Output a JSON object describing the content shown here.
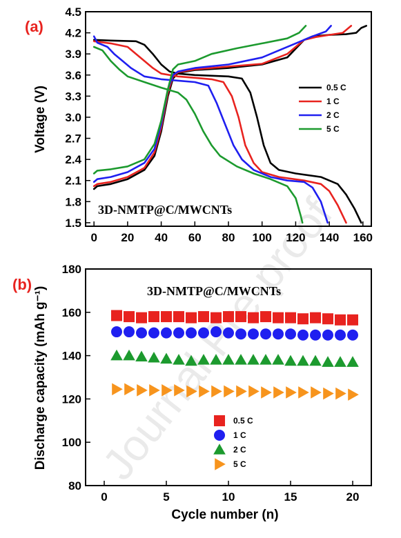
{
  "watermark": "Journal Pre-proof",
  "chart_data": [
    {
      "type": "line",
      "panel_label": "(a)",
      "inset_label": "3D-NMTP@C/MWCNTs",
      "ylabel": "Voltage (V)",
      "xlabel": "",
      "xlim": [
        -5,
        165
      ],
      "ylim": [
        1.45,
        4.5
      ],
      "x_ticks": [
        "0",
        "20",
        "40",
        "60",
        "80",
        "100",
        "120",
        "140",
        "160"
      ],
      "y_ticks": [
        "1.5",
        "1.8",
        "2.1",
        "2.4",
        "2.7",
        "3.0",
        "3.3",
        "3.6",
        "3.9",
        "4.2",
        "4.5"
      ],
      "legend_position": "right",
      "series": [
        {
          "name": "0.5 C",
          "color": "#000000",
          "charge": [
            [
              0,
              1.98
            ],
            [
              2,
              2.02
            ],
            [
              10,
              2.05
            ],
            [
              20,
              2.12
            ],
            [
              30,
              2.25
            ],
            [
              36,
              2.45
            ],
            [
              40,
              2.8
            ],
            [
              44,
              3.3
            ],
            [
              47,
              3.55
            ],
            [
              50,
              3.63
            ],
            [
              60,
              3.67
            ],
            [
              80,
              3.7
            ],
            [
              100,
              3.75
            ],
            [
              115,
              3.85
            ],
            [
              125,
              4.1
            ],
            [
              130,
              4.15
            ],
            [
              140,
              4.17
            ],
            [
              150,
              4.18
            ],
            [
              156,
              4.2
            ],
            [
              159,
              4.27
            ],
            [
              162,
              4.3
            ]
          ],
          "discharge": [
            [
              0,
              4.1
            ],
            [
              10,
              4.09
            ],
            [
              25,
              4.08
            ],
            [
              30,
              4.03
            ],
            [
              35,
              3.9
            ],
            [
              40,
              3.75
            ],
            [
              45,
              3.65
            ],
            [
              50,
              3.62
            ],
            [
              60,
              3.6
            ],
            [
              80,
              3.58
            ],
            [
              88,
              3.55
            ],
            [
              93,
              3.35
            ],
            [
              97,
              3.0
            ],
            [
              101,
              2.6
            ],
            [
              105,
              2.35
            ],
            [
              110,
              2.25
            ],
            [
              120,
              2.2
            ],
            [
              135,
              2.15
            ],
            [
              145,
              2.05
            ],
            [
              150,
              1.9
            ],
            [
              155,
              1.7
            ],
            [
              159,
              1.5
            ]
          ]
        },
        {
          "name": "1 C",
          "color": "#e8231f",
          "charge": [
            [
              0,
              2.02
            ],
            [
              2,
              2.05
            ],
            [
              10,
              2.08
            ],
            [
              20,
              2.15
            ],
            [
              30,
              2.28
            ],
            [
              36,
              2.5
            ],
            [
              40,
              2.85
            ],
            [
              44,
              3.35
            ],
            [
              47,
              3.58
            ],
            [
              50,
              3.64
            ],
            [
              60,
              3.68
            ],
            [
              80,
              3.72
            ],
            [
              100,
              3.76
            ],
            [
              115,
              3.9
            ],
            [
              125,
              4.1
            ],
            [
              132,
              4.14
            ],
            [
              140,
              4.17
            ],
            [
              148,
              4.2
            ],
            [
              153,
              4.3
            ]
          ],
          "discharge": [
            [
              0,
              4.08
            ],
            [
              10,
              4.05
            ],
            [
              20,
              4.0
            ],
            [
              25,
              3.9
            ],
            [
              30,
              3.8
            ],
            [
              35,
              3.7
            ],
            [
              40,
              3.62
            ],
            [
              50,
              3.58
            ],
            [
              60,
              3.56
            ],
            [
              70,
              3.54
            ],
            [
              77,
              3.5
            ],
            [
              82,
              3.3
            ],
            [
              86,
              3.0
            ],
            [
              90,
              2.6
            ],
            [
              95,
              2.35
            ],
            [
              100,
              2.22
            ],
            [
              110,
              2.15
            ],
            [
              125,
              2.1
            ],
            [
              135,
              2.05
            ],
            [
              140,
              1.95
            ],
            [
              145,
              1.75
            ],
            [
              150,
              1.5
            ]
          ]
        },
        {
          "name": "2 C",
          "color": "#1f1ff0",
          "charge": [
            [
              0,
              2.08
            ],
            [
              2,
              2.12
            ],
            [
              10,
              2.15
            ],
            [
              20,
              2.22
            ],
            [
              30,
              2.35
            ],
            [
              36,
              2.55
            ],
            [
              40,
              2.9
            ],
            [
              44,
              3.4
            ],
            [
              47,
              3.6
            ],
            [
              50,
              3.65
            ],
            [
              60,
              3.7
            ],
            [
              80,
              3.75
            ],
            [
              100,
              3.85
            ],
            [
              110,
              3.95
            ],
            [
              120,
              4.05
            ],
            [
              130,
              4.15
            ],
            [
              138,
              4.22
            ],
            [
              141,
              4.3
            ]
          ],
          "discharge": [
            [
              0,
              4.15
            ],
            [
              2,
              4.06
            ],
            [
              8,
              4.0
            ],
            [
              12,
              3.9
            ],
            [
              17,
              3.8
            ],
            [
              22,
              3.7
            ],
            [
              30,
              3.58
            ],
            [
              40,
              3.54
            ],
            [
              50,
              3.52
            ],
            [
              60,
              3.5
            ],
            [
              68,
              3.45
            ],
            [
              73,
              3.2
            ],
            [
              78,
              2.9
            ],
            [
              83,
              2.6
            ],
            [
              88,
              2.4
            ],
            [
              95,
              2.25
            ],
            [
              105,
              2.15
            ],
            [
              115,
              2.1
            ],
            [
              125,
              2.08
            ],
            [
              130,
              2.0
            ],
            [
              135,
              1.8
            ],
            [
              139,
              1.5
            ]
          ]
        },
        {
          "name": "5 C",
          "color": "#1c9a2e",
          "charge": [
            [
              0,
              2.2
            ],
            [
              2,
              2.24
            ],
            [
              10,
              2.26
            ],
            [
              20,
              2.3
            ],
            [
              30,
              2.4
            ],
            [
              36,
              2.62
            ],
            [
              40,
              2.95
            ],
            [
              44,
              3.4
            ],
            [
              47,
              3.68
            ],
            [
              50,
              3.75
            ],
            [
              60,
              3.8
            ],
            [
              70,
              3.9
            ],
            [
              85,
              3.98
            ],
            [
              100,
              4.05
            ],
            [
              115,
              4.12
            ],
            [
              122,
              4.2
            ],
            [
              126,
              4.3
            ]
          ],
          "discharge": [
            [
              0,
              4.0
            ],
            [
              5,
              3.95
            ],
            [
              10,
              3.8
            ],
            [
              15,
              3.68
            ],
            [
              20,
              3.58
            ],
            [
              30,
              3.5
            ],
            [
              40,
              3.42
            ],
            [
              50,
              3.35
            ],
            [
              55,
              3.25
            ],
            [
              60,
              3.05
            ],
            [
              65,
              2.8
            ],
            [
              70,
              2.6
            ],
            [
              75,
              2.45
            ],
            [
              85,
              2.3
            ],
            [
              95,
              2.2
            ],
            [
              105,
              2.12
            ],
            [
              115,
              2.02
            ],
            [
              120,
              1.85
            ],
            [
              123,
              1.6
            ],
            [
              124,
              1.5
            ]
          ]
        }
      ]
    },
    {
      "type": "scatter",
      "panel_label": "(b)",
      "inset_label": "3D-NMTP@C/MWCNTs",
      "xlabel": "Cycle number (n)",
      "ylabel": "Discharge capacity (mAh g⁻¹)",
      "xlim": [
        -1.5,
        21.5
      ],
      "ylim": [
        80,
        180
      ],
      "x_ticks": [
        "0",
        "5",
        "10",
        "15",
        "20"
      ],
      "y_ticks": [
        "80",
        "100",
        "120",
        "140",
        "160",
        "180"
      ],
      "legend_position": "bottom-center",
      "x": [
        1,
        2,
        3,
        4,
        5,
        6,
        7,
        8,
        9,
        10,
        11,
        12,
        13,
        14,
        15,
        16,
        17,
        18,
        19,
        20
      ],
      "series": [
        {
          "name": "0.5 C",
          "color": "#e8231f",
          "marker": "square",
          "values": [
            158.5,
            158.0,
            157.5,
            158.0,
            158.0,
            158.0,
            157.5,
            158.0,
            157.5,
            158.0,
            158.0,
            157.5,
            158.0,
            157.5,
            157.5,
            157.0,
            157.5,
            157.0,
            156.5,
            156.5
          ]
        },
        {
          "name": "1 C",
          "color": "#1f1ff0",
          "marker": "circle",
          "values": [
            151.0,
            151.0,
            150.5,
            150.5,
            150.5,
            150.5,
            150.5,
            150.5,
            151.0,
            150.5,
            150.0,
            150.0,
            150.0,
            150.0,
            150.0,
            149.5,
            149.5,
            149.5,
            149.5,
            149.5
          ]
        },
        {
          "name": "2 C",
          "color": "#1c9a2e",
          "marker": "triangle-up",
          "values": [
            140.0,
            140.0,
            139.5,
            139.0,
            138.5,
            138.0,
            137.5,
            138.0,
            138.0,
            138.0,
            138.0,
            138.0,
            138.0,
            138.0,
            137.5,
            137.5,
            137.5,
            137.0,
            137.0,
            137.0
          ]
        },
        {
          "name": "5 C",
          "color": "#f7941d",
          "marker": "triangle-right",
          "values": [
            124.5,
            124.5,
            124.0,
            124.0,
            124.0,
            124.0,
            123.5,
            123.5,
            123.5,
            123.5,
            123.5,
            123.5,
            123.0,
            123.0,
            123.0,
            123.0,
            123.0,
            122.5,
            122.5,
            122.0
          ]
        }
      ]
    }
  ]
}
